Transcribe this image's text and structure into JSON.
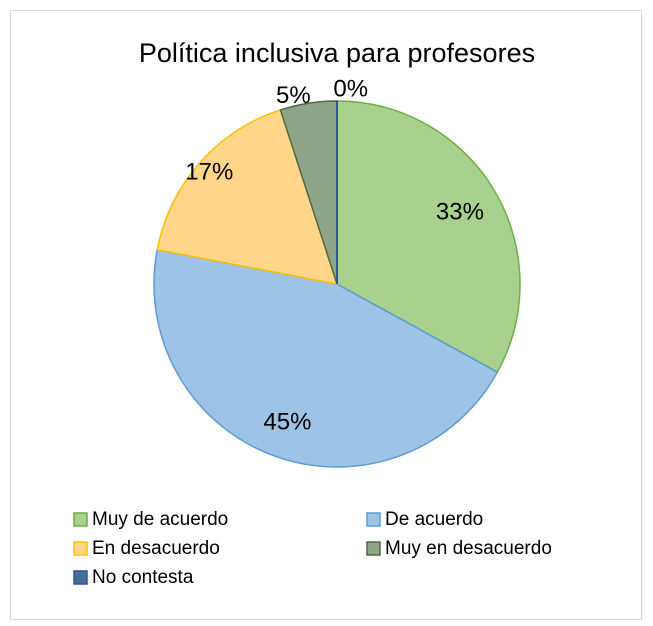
{
  "chart_data": {
    "type": "pie",
    "title": "Política inclusiva para profesores",
    "categories": [
      "Muy de acuerdo",
      "De acuerdo",
      "En desacuerdo",
      "Muy en desacuerdo",
      "No contesta"
    ],
    "values": [
      33,
      45,
      17,
      5,
      0
    ],
    "value_labels": [
      "33%",
      "45%",
      "17%",
      "5%",
      "0%"
    ],
    "colors": [
      "#a9d18e",
      "#9dc3e6",
      "#ffd68a",
      "#8fa58a",
      "#4a6d96"
    ],
    "stroke_colors": [
      "#70ad47",
      "#5b9bd5",
      "#ffc000",
      "#4e6b43",
      "#2f5597"
    ],
    "start_angle_deg": 0,
    "direction": "clockwise",
    "legend": {
      "position": "bottom",
      "entries": [
        "Muy de acuerdo",
        "De acuerdo",
        "En desacuerdo",
        "Muy en desacuerdo",
        "No contesta"
      ]
    }
  }
}
